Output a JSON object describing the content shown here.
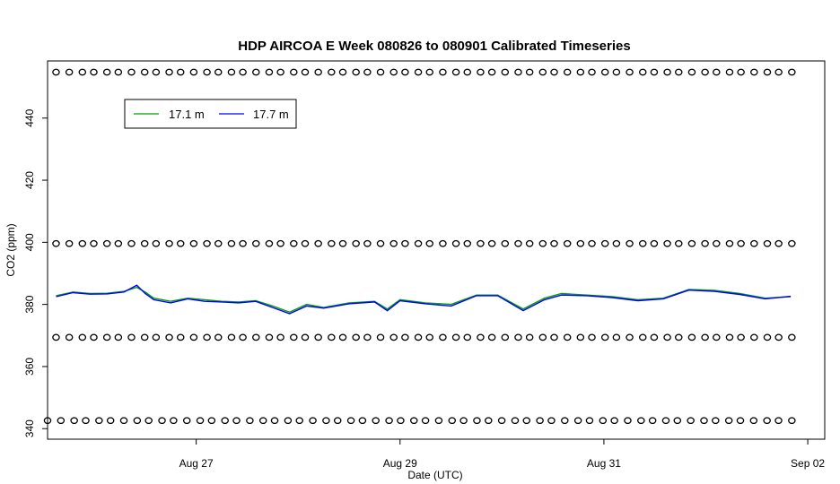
{
  "chart_data": {
    "type": "line",
    "title": "HDP AIRCOA E  Week 080826 to 080901  Calibrated Timeseries",
    "xlabel": "Date (UTC)",
    "ylabel": "CO2 (ppm)",
    "x_axis": {
      "type": "date",
      "range": [
        "2008-08-25T13:00",
        "2008-09-02T04:00"
      ],
      "ticks": [
        {
          "value": "2008-08-27",
          "label": "Aug 27"
        },
        {
          "value": "2008-08-29",
          "label": "Aug 29"
        },
        {
          "value": "2008-08-31",
          "label": "Aug 31"
        },
        {
          "value": "2008-09-02",
          "label": "Sep 02"
        }
      ]
    },
    "y_axis": {
      "range": [
        336.6,
        458.4
      ],
      "ticks": [
        340,
        360,
        380,
        400,
        420,
        440
      ]
    },
    "legend": {
      "placement": "top-left",
      "entries": [
        {
          "label": "17.1 m",
          "color": "#00a000"
        },
        {
          "label": "17.7 m",
          "color": "#0000ff"
        }
      ]
    },
    "series": [
      {
        "name": "17.1 m",
        "color": "#00a000",
        "data": [
          [
            "2008-08-25T15:00",
            382.8
          ],
          [
            "2008-08-25T19:00",
            384.0
          ],
          [
            "2008-08-25T23:00",
            383.5
          ],
          [
            "2008-08-26T03:00",
            383.6
          ],
          [
            "2008-08-26T07:00",
            384.2
          ],
          [
            "2008-08-26T10:00",
            385.5
          ],
          [
            "2008-08-26T12:00",
            384.0
          ],
          [
            "2008-08-26T14:00",
            382.0
          ],
          [
            "2008-08-26T18:00",
            381.0
          ],
          [
            "2008-08-26T22:00",
            382.0
          ],
          [
            "2008-08-27T02:00",
            381.5
          ],
          [
            "2008-08-27T06:00",
            381.0
          ],
          [
            "2008-08-27T10:00",
            380.8
          ],
          [
            "2008-08-27T14:00",
            381.2
          ],
          [
            "2008-08-27T18:00",
            379.5
          ],
          [
            "2008-08-27T22:00",
            377.5
          ],
          [
            "2008-08-28T02:00",
            380.0
          ],
          [
            "2008-08-28T06:00",
            379.0
          ],
          [
            "2008-08-28T12:00",
            380.5
          ],
          [
            "2008-08-28T18:00",
            381.0
          ],
          [
            "2008-08-28T21:00",
            378.5
          ],
          [
            "2008-08-29T00:00",
            381.5
          ],
          [
            "2008-08-29T06:00",
            380.5
          ],
          [
            "2008-08-29T12:00",
            380.0
          ],
          [
            "2008-08-29T18:00",
            383.0
          ],
          [
            "2008-08-29T23:00",
            383.0
          ],
          [
            "2008-08-30T05:00",
            378.5
          ],
          [
            "2008-08-30T10:00",
            382.0
          ],
          [
            "2008-08-30T14:00",
            383.5
          ],
          [
            "2008-08-30T20:00",
            383.0
          ],
          [
            "2008-08-31T02:00",
            382.5
          ],
          [
            "2008-08-31T08:00",
            381.5
          ],
          [
            "2008-08-31T14:00",
            382.0
          ],
          [
            "2008-08-31T20:00",
            384.8
          ],
          [
            "2008-09-01T02:00",
            384.5
          ],
          [
            "2008-09-01T08:00",
            383.5
          ],
          [
            "2008-09-01T14:00",
            382.0
          ],
          [
            "2008-09-01T20:00",
            382.5
          ]
        ]
      },
      {
        "name": "17.7 m",
        "color": "#0000ff",
        "data": [
          [
            "2008-08-25T15:00",
            382.5
          ],
          [
            "2008-08-25T19:00",
            383.8
          ],
          [
            "2008-08-25T23:00",
            383.3
          ],
          [
            "2008-08-26T03:00",
            383.4
          ],
          [
            "2008-08-26T07:00",
            384.0
          ],
          [
            "2008-08-26T10:00",
            386.2
          ],
          [
            "2008-08-26T12:00",
            383.5
          ],
          [
            "2008-08-26T14:00",
            381.5
          ],
          [
            "2008-08-26T18:00",
            380.5
          ],
          [
            "2008-08-26T22:00",
            381.8
          ],
          [
            "2008-08-27T02:00",
            381.0
          ],
          [
            "2008-08-27T06:00",
            380.8
          ],
          [
            "2008-08-27T10:00",
            380.5
          ],
          [
            "2008-08-27T14:00",
            381.0
          ],
          [
            "2008-08-27T18:00",
            379.0
          ],
          [
            "2008-08-27T22:00",
            377.0
          ],
          [
            "2008-08-28T02:00",
            379.5
          ],
          [
            "2008-08-28T06:00",
            378.8
          ],
          [
            "2008-08-28T12:00",
            380.2
          ],
          [
            "2008-08-28T18:00",
            380.8
          ],
          [
            "2008-08-28T21:00",
            378.0
          ],
          [
            "2008-08-29T00:00",
            381.2
          ],
          [
            "2008-08-29T06:00",
            380.2
          ],
          [
            "2008-08-29T12:00",
            379.5
          ],
          [
            "2008-08-29T18:00",
            382.8
          ],
          [
            "2008-08-29T23:00",
            382.8
          ],
          [
            "2008-08-30T05:00",
            378.0
          ],
          [
            "2008-08-30T10:00",
            381.5
          ],
          [
            "2008-08-30T14:00",
            383.0
          ],
          [
            "2008-08-30T20:00",
            382.8
          ],
          [
            "2008-08-31T02:00",
            382.2
          ],
          [
            "2008-08-31T08:00",
            381.2
          ],
          [
            "2008-08-31T14:00",
            381.8
          ],
          [
            "2008-08-31T20:00",
            384.6
          ],
          [
            "2008-09-01T02:00",
            384.2
          ],
          [
            "2008-09-01T08:00",
            383.2
          ],
          [
            "2008-09-01T14:00",
            381.8
          ],
          [
            "2008-09-01T20:00",
            382.6
          ]
        ]
      }
    ],
    "marker_rows": [
      {
        "y": 454.8,
        "x_start": "2008-08-25T15:00",
        "x_end": "2008-09-01T20:00",
        "count": 60
      },
      {
        "y": 399.6,
        "x_start": "2008-08-25T15:00",
        "x_end": "2008-09-01T20:00",
        "count": 60
      },
      {
        "y": 369.4,
        "x_start": "2008-08-25T15:00",
        "x_end": "2008-09-01T20:00",
        "count": 60
      },
      {
        "y": 342.6,
        "x_start": "2008-08-25T13:00",
        "x_end": "2008-09-01T20:00",
        "count": 60
      }
    ]
  }
}
